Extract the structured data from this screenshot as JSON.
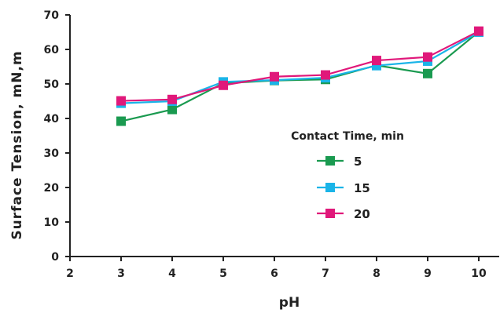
{
  "chart_data": {
    "type": "line",
    "xlabel": "pH",
    "ylabel": "Surface Tension, mN,m",
    "xlim": [
      2,
      10.4
    ],
    "ylim": [
      0,
      70
    ],
    "xticks": [
      2,
      3,
      4,
      5,
      6,
      7,
      8,
      9,
      10
    ],
    "yticks": [
      0,
      10,
      20,
      30,
      40,
      50,
      60,
      70
    ],
    "grid": false,
    "legend": {
      "title": "Contact Time, min",
      "placement": "center-right"
    },
    "x": [
      3,
      4,
      5,
      6,
      7,
      8,
      9,
      10
    ],
    "series": [
      {
        "name": "5",
        "color": "#1a9a50",
        "marker": "square",
        "values": [
          39.2,
          42.6,
          50.2,
          51.0,
          51.3,
          55.4,
          53.0,
          65.1
        ]
      },
      {
        "name": "15",
        "color": "#1ab4e8",
        "marker": "square",
        "values": [
          44.4,
          45.0,
          50.6,
          51.1,
          51.8,
          55.3,
          56.6,
          65.0
        ]
      },
      {
        "name": "20",
        "color": "#e0187a",
        "marker": "square",
        "values": [
          45.1,
          45.5,
          49.6,
          52.1,
          52.6,
          56.8,
          57.8,
          65.3
        ]
      }
    ]
  }
}
